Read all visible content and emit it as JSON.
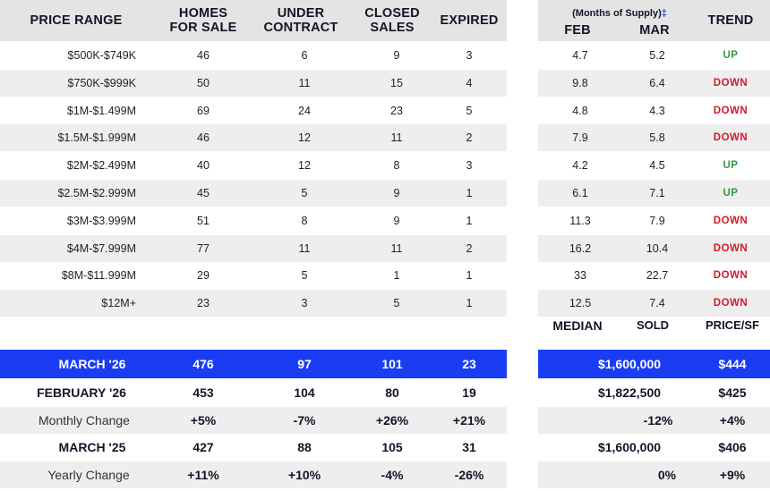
{
  "headers": {
    "price_range": "PRICE RANGE",
    "homes_for_sale": [
      "HOMES",
      "FOR SALE"
    ],
    "under_contract": [
      "UNDER",
      "CONTRACT"
    ],
    "closed_sales": [
      "CLOSED",
      "SALES"
    ],
    "expired": "EXPIRED",
    "months_of_supply": "(Months of Supply)",
    "mos_mark": "‡",
    "feb": "FEB",
    "mar": "MAR",
    "trend": "TREND"
  },
  "rows": [
    {
      "range": "$500K-$749K",
      "homes": "46",
      "under": "6",
      "closed": "9",
      "expired": "3",
      "feb": "4.7",
      "mar": "5.2",
      "trend": "UP"
    },
    {
      "range": "$750K-$999K",
      "homes": "50",
      "under": "11",
      "closed": "15",
      "expired": "4",
      "feb": "9.8",
      "mar": "6.4",
      "trend": "DOWN"
    },
    {
      "range": "$1M-$1.499M",
      "homes": "69",
      "under": "24",
      "closed": "23",
      "expired": "5",
      "feb": "4.8",
      "mar": "4.3",
      "trend": "DOWN"
    },
    {
      "range": "$1.5M-$1.999M",
      "homes": "46",
      "under": "12",
      "closed": "11",
      "expired": "2",
      "feb": "7.9",
      "mar": "5.8",
      "trend": "DOWN"
    },
    {
      "range": "$2M-$2.499M",
      "homes": "40",
      "under": "12",
      "closed": "8",
      "expired": "3",
      "feb": "4.2",
      "mar": "4.5",
      "trend": "UP"
    },
    {
      "range": "$2.5M-$2.999M",
      "homes": "45",
      "under": "5",
      "closed": "9",
      "expired": "1",
      "feb": "6.1",
      "mar": "7.1",
      "trend": "UP"
    },
    {
      "range": "$3M-$3.999M",
      "homes": "51",
      "under": "8",
      "closed": "9",
      "expired": "1",
      "feb": "11.3",
      "mar": "7.9",
      "trend": "DOWN"
    },
    {
      "range": "$4M-$7.999M",
      "homes": "77",
      "under": "11",
      "closed": "11",
      "expired": "2",
      "feb": "16.2",
      "mar": "10.4",
      "trend": "DOWN"
    },
    {
      "range": "$8M-$11.999M",
      "homes": "29",
      "under": "5",
      "closed": "1",
      "expired": "1",
      "feb": "33",
      "mar": "22.7",
      "trend": "DOWN"
    },
    {
      "range": "$12M+",
      "homes": "23",
      "under": "3",
      "closed": "5",
      "expired": "1",
      "feb": "12.5",
      "mar": "7.4",
      "trend": "DOWN"
    }
  ],
  "median_headers": {
    "median": "MEDIAN",
    "sold": "SOLD",
    "price_sf": "PRICE/SF"
  },
  "summary": {
    "march_26": {
      "label": "MARCH '26",
      "homes": "476",
      "under": "97",
      "closed": "101",
      "expired": "23",
      "sold": "$1,600,000",
      "price_sf": "$444"
    },
    "february_26": {
      "label": "FEBRUARY '26",
      "homes": "453",
      "under": "104",
      "closed": "80",
      "expired": "19",
      "sold": "$1,822,500",
      "price_sf": "$425"
    },
    "monthly_change": {
      "label": "Monthly Change",
      "homes": "+5%",
      "under": "-7%",
      "closed": "+26%",
      "expired": "+21%",
      "sold": "-12%",
      "price_sf": "+4%"
    },
    "march_25": {
      "label": "MARCH '25",
      "homes": "427",
      "under": "88",
      "closed": "105",
      "expired": "31",
      "sold": "$1,600,000",
      "price_sf": "$406"
    },
    "yearly_change": {
      "label": "Yearly Change",
      "homes": "+11%",
      "under": "+10%",
      "closed": "-4%",
      "expired": "-26%",
      "sold": "0%",
      "price_sf": "+9%"
    }
  }
}
